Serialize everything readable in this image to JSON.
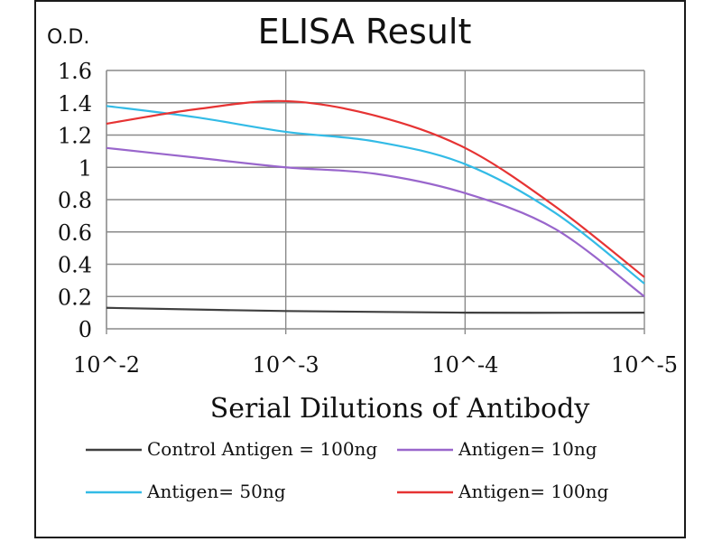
{
  "chart_data": {
    "type": "line",
    "title": "ELISA Result",
    "ylabel": "O.D.",
    "xlabel": "Serial Dilutions  of Antibody",
    "categories": [
      "10^-2",
      "10^-3",
      "10^-4",
      "10^-5"
    ],
    "ylim": [
      0,
      1.6
    ],
    "yticks": [
      "0",
      "0.2",
      "0.4",
      "0.6",
      "0.8",
      "1",
      "1.2",
      "1.4",
      "1.6"
    ],
    "grid": true,
    "legend_position": "bottom",
    "series": [
      {
        "name": "Control Antigen = 100ng",
        "color": "#404040",
        "points": [
          [
            0,
            0.13
          ],
          [
            1,
            0.11
          ],
          [
            2,
            0.1
          ],
          [
            3,
            0.1
          ]
        ]
      },
      {
        "name": "Antigen= 10ng",
        "color": "#9966cc",
        "points": [
          [
            0,
            1.12
          ],
          [
            0.5,
            1.06
          ],
          [
            1,
            1.0
          ],
          [
            1.5,
            0.96
          ],
          [
            2,
            0.84
          ],
          [
            2.5,
            0.62
          ],
          [
            3,
            0.2
          ]
        ]
      },
      {
        "name": "Antigen= 50ng",
        "color": "#33bbe6",
        "points": [
          [
            0,
            1.38
          ],
          [
            0.5,
            1.31
          ],
          [
            1,
            1.22
          ],
          [
            1.5,
            1.16
          ],
          [
            2,
            1.02
          ],
          [
            2.5,
            0.72
          ],
          [
            3,
            0.28
          ]
        ]
      },
      {
        "name": "Antigen= 100ng",
        "color": "#e63333",
        "points": [
          [
            0,
            1.27
          ],
          [
            0.5,
            1.36
          ],
          [
            1,
            1.41
          ],
          [
            1.5,
            1.32
          ],
          [
            2,
            1.12
          ],
          [
            2.5,
            0.76
          ],
          [
            3,
            0.32
          ]
        ]
      }
    ]
  }
}
